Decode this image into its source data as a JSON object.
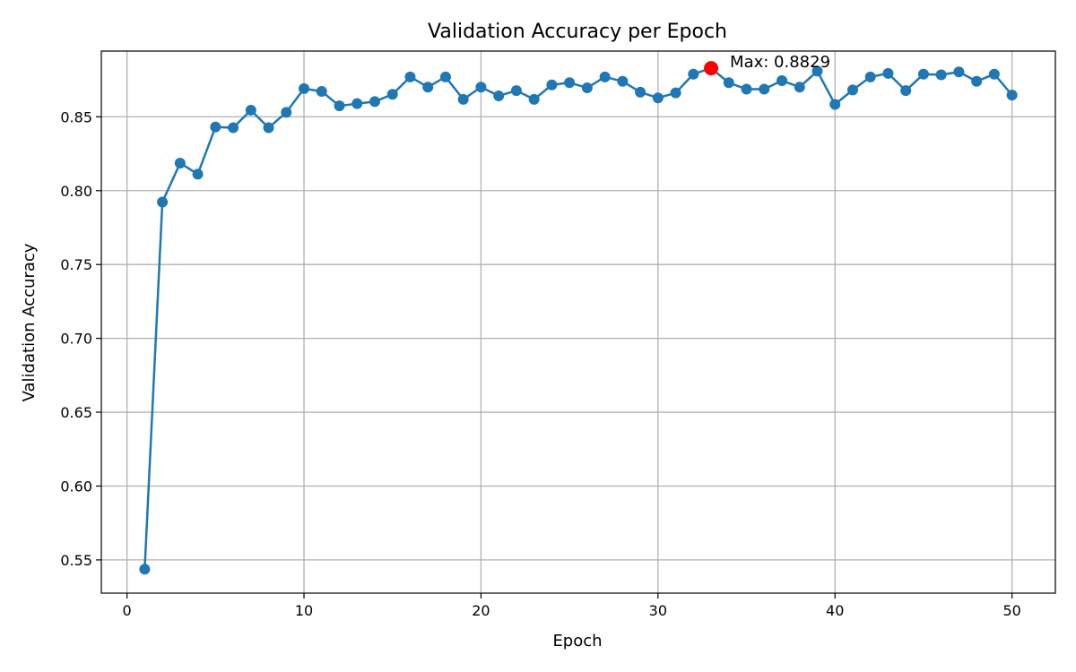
{
  "chart_data": {
    "type": "line",
    "title": "Validation Accuracy per Epoch",
    "xlabel": "Epoch",
    "ylabel": "Validation Accuracy",
    "xlim": [
      -1.45,
      52.45
    ],
    "ylim": [
      0.5275,
      0.8945
    ],
    "xticks": [
      0,
      10,
      20,
      30,
      40,
      50
    ],
    "yticks": [
      0.55,
      0.6,
      0.65,
      0.7,
      0.75,
      0.8,
      0.85
    ],
    "grid": true,
    "series_color": "#1f77b4",
    "highlight_color": "#ff0000",
    "series": [
      {
        "x": [
          1,
          2,
          3,
          4,
          5,
          6,
          7,
          8,
          9,
          10,
          11,
          12,
          13,
          14,
          15,
          16,
          17,
          18,
          19,
          20,
          21,
          22,
          23,
          24,
          25,
          26,
          27,
          28,
          29,
          30,
          31,
          32,
          33,
          34,
          35,
          36,
          37,
          38,
          39,
          40,
          41,
          42,
          43,
          44,
          45,
          46,
          47,
          48,
          49,
          50
        ],
        "values": [
          0.5437,
          0.7923,
          0.8186,
          0.8112,
          0.8431,
          0.8426,
          0.8545,
          0.8426,
          0.853,
          0.8691,
          0.8672,
          0.8574,
          0.8589,
          0.8603,
          0.8652,
          0.877,
          0.8701,
          0.877,
          0.8618,
          0.8701,
          0.8642,
          0.8677,
          0.8618,
          0.8716,
          0.8731,
          0.8696,
          0.877,
          0.874,
          0.8667,
          0.8628,
          0.8662,
          0.8789,
          0.8829,
          0.8731,
          0.8687,
          0.8687,
          0.8745,
          0.8701,
          0.8809,
          0.8584,
          0.8682,
          0.877,
          0.8794,
          0.8677,
          0.8789,
          0.8784,
          0.8804,
          0.874,
          0.8789,
          0.8647
        ]
      }
    ],
    "annotations": [
      {
        "x": 33,
        "y": 0.8829,
        "text": "Max: 0.8829"
      }
    ]
  }
}
